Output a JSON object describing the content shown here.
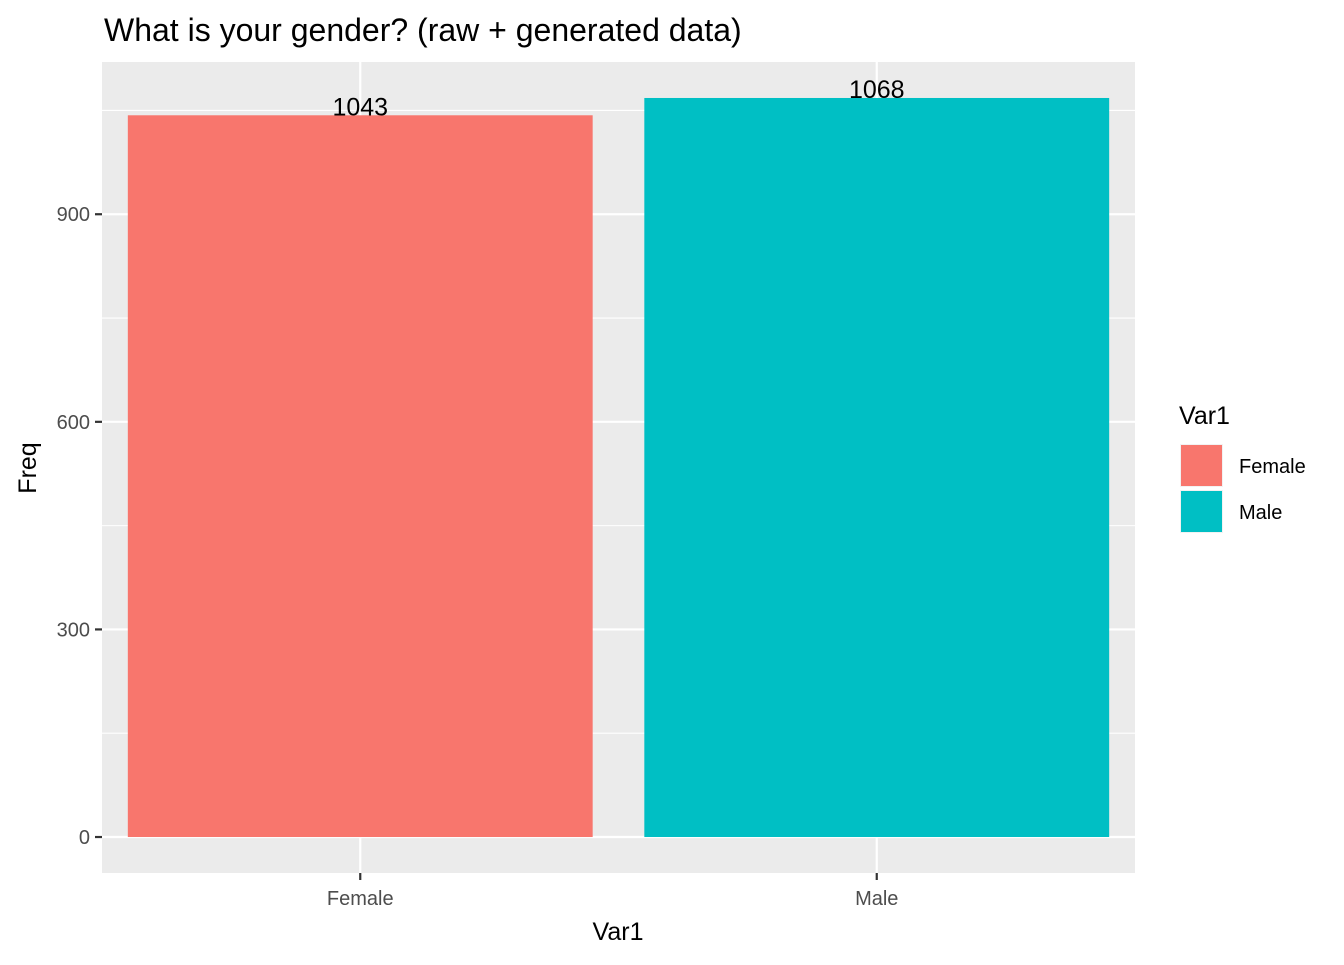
{
  "chart_data": {
    "type": "bar",
    "title": "What is your gender? (raw + generated data)",
    "xlabel": "Var1",
    "ylabel": "Freq",
    "categories": [
      "Female",
      "Male"
    ],
    "values": [
      1043,
      1068
    ],
    "data_labels": [
      "1043",
      "1068"
    ],
    "colors": [
      "#F8766D",
      "#00BFC4"
    ],
    "ylim": [
      -52,
      1120
    ],
    "yticks": [
      0,
      300,
      600,
      900
    ],
    "ytick_labels": [
      "0",
      "300",
      "600",
      "900"
    ],
    "grid": true,
    "panel_background": "#EBEBEB",
    "legend": {
      "title": "Var1",
      "position": "right",
      "entries": [
        {
          "label": "Female",
          "color": "#F8766D"
        },
        {
          "label": "Male",
          "color": "#00BFC4"
        }
      ]
    }
  }
}
